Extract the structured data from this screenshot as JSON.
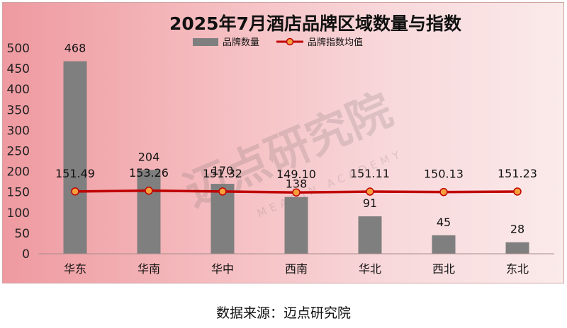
{
  "chart_data": {
    "type": "bar",
    "title": "2025年7月酒店品牌区域数量与指数",
    "categories": [
      "华东",
      "华南",
      "华中",
      "西南",
      "华北",
      "西北",
      "东北"
    ],
    "series": [
      {
        "name": "品牌数量",
        "kind": "bar",
        "values": [
          468,
          204,
          170,
          138,
          91,
          45,
          28
        ]
      },
      {
        "name": "品牌指数均值",
        "kind": "line",
        "values": [
          151.49,
          153.26,
          151.32,
          149.1,
          151.11,
          150.13,
          151.23
        ]
      }
    ],
    "value_labels": {
      "bar": [
        "468",
        "204",
        "170",
        "138",
        "91",
        "45",
        "28"
      ],
      "line": [
        "151.49",
        "153.26",
        "151.32",
        "149.10",
        "151.11",
        "150.13",
        "151.23"
      ]
    },
    "ylim": [
      0,
      500
    ],
    "yticks": [
      0,
      50,
      100,
      150,
      200,
      250,
      300,
      350,
      400,
      450,
      500
    ],
    "grid": false,
    "legend_position": "top-center",
    "colors": {
      "bar": "#7f7f7f",
      "line": "#c00000",
      "marker": "#f5a03c"
    }
  },
  "watermark": {
    "text": "迈点研究院",
    "subtext": "MEADIN ACADEMY"
  },
  "source": "数据来源：迈点研究院"
}
